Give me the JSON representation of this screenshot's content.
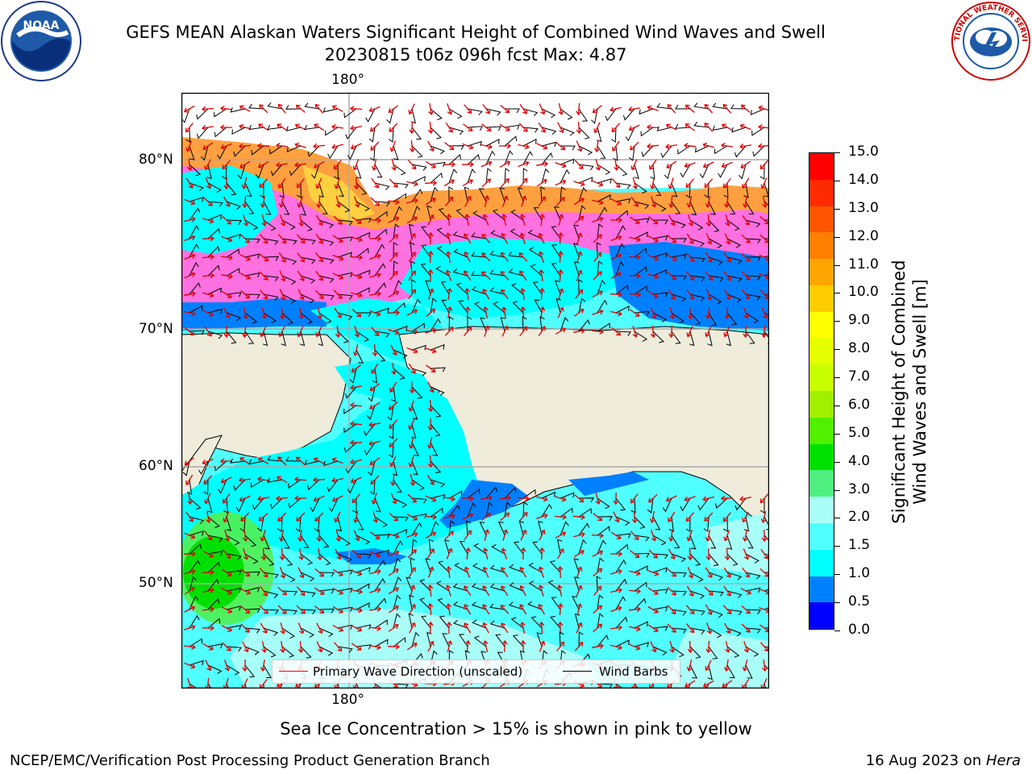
{
  "title": {
    "line1": "GEFS MEAN Alaskan Waters Significant Height of Combined Wind Waves and Swell",
    "line2": "20230815 t06z 096h fcst   Max: 4.87"
  },
  "logos": {
    "left": "NOAA",
    "right": "NATIONAL WEATHER SERVICE"
  },
  "map": {
    "lon_label_top": "180°",
    "lon_label_bottom": "180°",
    "lat_labels": [
      "80°N",
      "70°N",
      "60°N",
      "50°N"
    ]
  },
  "legend": {
    "wave_label": "Primary Wave Direction (unscaled)",
    "wind_label": "Wind Barbs",
    "wave_color": "#ff0000",
    "wind_color": "#000000"
  },
  "colorbar": {
    "title_line1": "Significant Height of Combined",
    "title_line2": "Wind Waves and Swell [m]",
    "ticks": [
      "15.0",
      "14.0",
      "13.0",
      "12.0",
      "11.0",
      "10.0",
      "9.0",
      "8.0",
      "7.0",
      "6.0",
      "5.0",
      "4.0",
      "3.0",
      "2.0",
      "1.5",
      "1.0",
      "0.5",
      "0.0"
    ],
    "colors": [
      "#ff0000",
      "#ff2a00",
      "#ff5500",
      "#ff7f00",
      "#ffa500",
      "#ffcc00",
      "#ffff00",
      "#e5ff00",
      "#c8ff00",
      "#a0f000",
      "#50f000",
      "#00e000",
      "#50f080",
      "#a8fff8",
      "#50ffff",
      "#00ffff",
      "#0080ff",
      "#0000ff"
    ]
  },
  "ice_note": "Sea Ice Concentration > 15% is shown in pink to yellow",
  "footer": {
    "left": "NCEP/EMC/Verification Post Processing Product Generation Branch",
    "right_date": "16 Aug 2023 on ",
    "right_host": "Hera"
  },
  "colors": {
    "land": "#efecdc",
    "ocean_light": "#a8fff8",
    "ocean_cyan": "#50ffff",
    "ocean_mid": "#00ffff",
    "ocean_blue": "#0080ff",
    "ocean_deep": "#0000ff",
    "ice_pink": "#ff40ff",
    "ice_orange": "#ffa040",
    "ice_yellow": "#ffd040",
    "green": "#50f050"
  }
}
